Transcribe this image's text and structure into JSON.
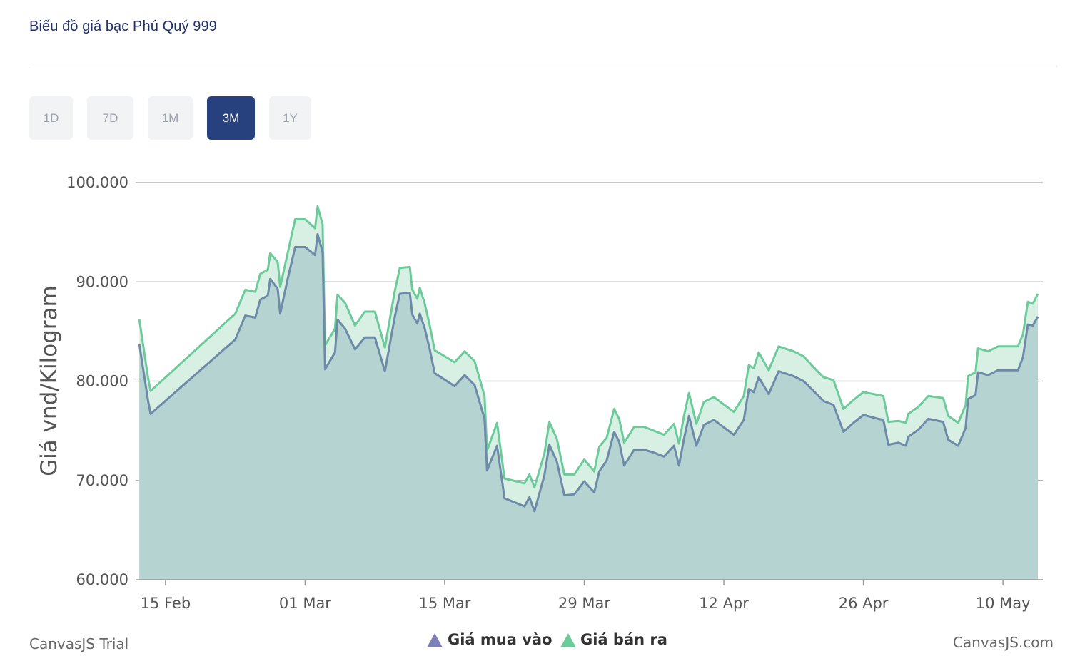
{
  "header": {
    "title": "Biểu đồ giá bạc Phú Quý 999"
  },
  "range_buttons": [
    {
      "label": "1D",
      "active": false
    },
    {
      "label": "7D",
      "active": false
    },
    {
      "label": "1M",
      "active": false
    },
    {
      "label": "3M",
      "active": true
    },
    {
      "label": "1Y",
      "active": false
    }
  ],
  "colors": {
    "buy_line": "#6d8aa8",
    "sell_line": "#6ccb9a",
    "buy_fill": "#b4d3d1",
    "sell_fill": "#d8f0e4",
    "active_button": "#27407e",
    "gridline": "#a7a7a7",
    "legend_buy_marker": "#7d80b9",
    "legend_sell_marker": "#6ccb9a"
  },
  "credits": {
    "left": "CanvasJS Trial",
    "right": "CanvasJS.com"
  },
  "chart_data": {
    "type": "area",
    "title": "",
    "ylabel": "Giá vnd/Kilogram",
    "xlabel": "",
    "ylim": [
      60000,
      100000
    ],
    "y_ticks": [
      "60.000",
      "70.000",
      "80.000",
      "90.000",
      "100.000"
    ],
    "y_tick_values": [
      60000,
      70000,
      80000,
      90000,
      100000
    ],
    "x_ticks": [
      "15 Feb",
      "01 Mar",
      "15 Mar",
      "29 Mar",
      "12 Apr",
      "26 Apr",
      "10 May"
    ],
    "x_tick_dates": [
      "2025-02-15",
      "2025-03-01",
      "2025-03-15",
      "2025-03-29",
      "2025-04-12",
      "2025-04-26",
      "2025-05-10"
    ],
    "x_range": [
      "2025-02-12",
      "2025-05-13"
    ],
    "grid": true,
    "legend_position": "bottom-center",
    "series": [
      {
        "name": "Giá mua vào",
        "color": "#6d8aa8",
        "points": [
          [
            "2025-02-12T09:00",
            83700
          ],
          [
            "2025-02-13T06:00",
            78000
          ],
          [
            "2025-02-13T12:00",
            76700
          ],
          [
            "2025-02-22T00:00",
            84200
          ],
          [
            "2025-02-23T00:00",
            86600
          ],
          [
            "2025-02-24T00:00",
            86400
          ],
          [
            "2025-02-24T12:00",
            88200
          ],
          [
            "2025-02-25T06:00",
            88600
          ],
          [
            "2025-02-25T12:00",
            90300
          ],
          [
            "2025-02-26T06:00",
            89300
          ],
          [
            "2025-02-26T12:00",
            86800
          ],
          [
            "2025-02-27T06:00",
            90300
          ],
          [
            "2025-02-28T00:00",
            93500
          ],
          [
            "2025-03-01T00:00",
            93500
          ],
          [
            "2025-03-02T00:00",
            92700
          ],
          [
            "2025-03-02T06:00",
            94800
          ],
          [
            "2025-03-02T18:00",
            93000
          ],
          [
            "2025-03-03T00:00",
            81200
          ],
          [
            "2025-03-04T00:00",
            82900
          ],
          [
            "2025-03-04T06:00",
            86200
          ],
          [
            "2025-03-05T00:00",
            85300
          ],
          [
            "2025-03-06T00:00",
            83200
          ],
          [
            "2025-03-07T00:00",
            84400
          ],
          [
            "2025-03-08T00:00",
            84400
          ],
          [
            "2025-03-09T00:00",
            81000
          ],
          [
            "2025-03-10T00:00",
            86500
          ],
          [
            "2025-03-10T12:00",
            88800
          ],
          [
            "2025-03-11T12:00",
            88900
          ],
          [
            "2025-03-11T18:00",
            86700
          ],
          [
            "2025-03-12T06:00",
            85800
          ],
          [
            "2025-03-12T12:00",
            86800
          ],
          [
            "2025-03-13T00:00",
            85300
          ],
          [
            "2025-03-13T12:00",
            83200
          ],
          [
            "2025-03-14T00:00",
            80800
          ],
          [
            "2025-03-16T00:00",
            79500
          ],
          [
            "2025-03-17T00:00",
            80600
          ],
          [
            "2025-03-18T00:00",
            79600
          ],
          [
            "2025-03-19T00:00",
            76200
          ],
          [
            "2025-03-19T06:00",
            71000
          ],
          [
            "2025-03-20T06:00",
            73500
          ],
          [
            "2025-03-21T00:00",
            68200
          ],
          [
            "2025-03-23T00:00",
            67400
          ],
          [
            "2025-03-23T12:00",
            68300
          ],
          [
            "2025-03-24T00:00",
            66900
          ],
          [
            "2025-03-25T00:00",
            70500
          ],
          [
            "2025-03-25T12:00",
            73600
          ],
          [
            "2025-03-26T06:00",
            71900
          ],
          [
            "2025-03-27T00:00",
            68500
          ],
          [
            "2025-03-28T00:00",
            68600
          ],
          [
            "2025-03-29T00:00",
            69900
          ],
          [
            "2025-03-30T00:00",
            68800
          ],
          [
            "2025-03-30T12:00",
            70900
          ],
          [
            "2025-03-31T06:00",
            72000
          ],
          [
            "2025-04-01T00:00",
            74900
          ],
          [
            "2025-04-01T12:00",
            73900
          ],
          [
            "2025-04-02T00:00",
            71500
          ],
          [
            "2025-04-03T00:00",
            73100
          ],
          [
            "2025-04-04T00:00",
            73100
          ],
          [
            "2025-04-05T00:00",
            72800
          ],
          [
            "2025-04-06T00:00",
            72400
          ],
          [
            "2025-04-07T00:00",
            73500
          ],
          [
            "2025-04-07T12:00",
            71500
          ],
          [
            "2025-04-08T00:00",
            74200
          ],
          [
            "2025-04-08T12:00",
            76500
          ],
          [
            "2025-04-09T06:00",
            73500
          ],
          [
            "2025-04-10T00:00",
            75600
          ],
          [
            "2025-04-11T00:00",
            76100
          ],
          [
            "2025-04-13T00:00",
            74600
          ],
          [
            "2025-04-14T00:00",
            76100
          ],
          [
            "2025-04-14T12:00",
            79200
          ],
          [
            "2025-04-15T00:00",
            78900
          ],
          [
            "2025-04-15T12:00",
            80400
          ],
          [
            "2025-04-16T12:00",
            78700
          ],
          [
            "2025-04-17T12:00",
            81000
          ],
          [
            "2025-04-19T00:00",
            80500
          ],
          [
            "2025-04-20T00:00",
            80000
          ],
          [
            "2025-04-21T00:00",
            79000
          ],
          [
            "2025-04-22T00:00",
            78000
          ],
          [
            "2025-04-23T00:00",
            77600
          ],
          [
            "2025-04-24T00:00",
            74900
          ],
          [
            "2025-04-25T00:00",
            75800
          ],
          [
            "2025-04-26T00:00",
            76600
          ],
          [
            "2025-04-27T12:00",
            76200
          ],
          [
            "2025-04-28T00:00",
            76100
          ],
          [
            "2025-04-28T12:00",
            73600
          ],
          [
            "2025-04-29T12:00",
            73800
          ],
          [
            "2025-04-30T06:00",
            73500
          ],
          [
            "2025-04-30T12:00",
            74400
          ],
          [
            "2025-05-01T12:00",
            75100
          ],
          [
            "2025-05-02T12:00",
            76200
          ],
          [
            "2025-05-04T00:00",
            75900
          ],
          [
            "2025-05-04T12:00",
            74100
          ],
          [
            "2025-05-05T12:00",
            73500
          ],
          [
            "2025-05-06T06:00",
            75300
          ],
          [
            "2025-05-06T12:00",
            78200
          ],
          [
            "2025-05-07T06:00",
            78600
          ],
          [
            "2025-05-07T12:00",
            80900
          ],
          [
            "2025-05-08T12:00",
            80600
          ],
          [
            "2025-05-09T12:00",
            81100
          ],
          [
            "2025-05-10T12:00",
            81100
          ],
          [
            "2025-05-11T12:00",
            81100
          ],
          [
            "2025-05-12T00:00",
            82400
          ],
          [
            "2025-05-12T12:00",
            85700
          ],
          [
            "2025-05-13T00:00",
            85600
          ],
          [
            "2025-05-13T12:00",
            86500
          ]
        ]
      },
      {
        "name": "Giá bán ra",
        "color": "#6ccb9a",
        "points": [
          [
            "2025-02-12T09:00",
            86200
          ],
          [
            "2025-02-13T06:00",
            80300
          ],
          [
            "2025-02-13T12:00",
            79000
          ],
          [
            "2025-02-22T00:00",
            86800
          ],
          [
            "2025-02-23T00:00",
            89200
          ],
          [
            "2025-02-24T00:00",
            89000
          ],
          [
            "2025-02-24T12:00",
            90800
          ],
          [
            "2025-02-25T06:00",
            91200
          ],
          [
            "2025-02-25T12:00",
            92900
          ],
          [
            "2025-02-26T06:00",
            92000
          ],
          [
            "2025-02-26T12:00",
            89500
          ],
          [
            "2025-02-27T06:00",
            92900
          ],
          [
            "2025-02-28T00:00",
            96300
          ],
          [
            "2025-03-01T00:00",
            96300
          ],
          [
            "2025-03-02T00:00",
            95400
          ],
          [
            "2025-03-02T06:00",
            97600
          ],
          [
            "2025-03-02T18:00",
            95800
          ],
          [
            "2025-03-03T00:00",
            83600
          ],
          [
            "2025-03-04T00:00",
            85300
          ],
          [
            "2025-03-04T06:00",
            88700
          ],
          [
            "2025-03-05T00:00",
            87900
          ],
          [
            "2025-03-06T00:00",
            85600
          ],
          [
            "2025-03-07T00:00",
            87000
          ],
          [
            "2025-03-08T00:00",
            87000
          ],
          [
            "2025-03-09T00:00",
            83400
          ],
          [
            "2025-03-10T00:00",
            89100
          ],
          [
            "2025-03-10T12:00",
            91400
          ],
          [
            "2025-03-11T12:00",
            91500
          ],
          [
            "2025-03-11T18:00",
            89200
          ],
          [
            "2025-03-12T06:00",
            88300
          ],
          [
            "2025-03-12T12:00",
            89400
          ],
          [
            "2025-03-13T00:00",
            87800
          ],
          [
            "2025-03-13T12:00",
            85600
          ],
          [
            "2025-03-14T00:00",
            83100
          ],
          [
            "2025-03-16T00:00",
            81900
          ],
          [
            "2025-03-17T00:00",
            83000
          ],
          [
            "2025-03-18T00:00",
            82000
          ],
          [
            "2025-03-19T00:00",
            78500
          ],
          [
            "2025-03-19T06:00",
            73000
          ],
          [
            "2025-03-20T06:00",
            75800
          ],
          [
            "2025-03-21T00:00",
            70200
          ],
          [
            "2025-03-23T00:00",
            69700
          ],
          [
            "2025-03-23T12:00",
            70600
          ],
          [
            "2025-03-24T00:00",
            69300
          ],
          [
            "2025-03-25T00:00",
            72700
          ],
          [
            "2025-03-25T12:00",
            75900
          ],
          [
            "2025-03-26T06:00",
            74200
          ],
          [
            "2025-03-27T00:00",
            70600
          ],
          [
            "2025-03-28T00:00",
            70600
          ],
          [
            "2025-03-29T00:00",
            72100
          ],
          [
            "2025-03-30T00:00",
            70900
          ],
          [
            "2025-03-30T12:00",
            73400
          ],
          [
            "2025-03-31T06:00",
            74300
          ],
          [
            "2025-04-01T00:00",
            77200
          ],
          [
            "2025-04-01T12:00",
            76200
          ],
          [
            "2025-04-02T00:00",
            73800
          ],
          [
            "2025-04-03T00:00",
            75400
          ],
          [
            "2025-04-04T00:00",
            75400
          ],
          [
            "2025-04-05T00:00",
            75000
          ],
          [
            "2025-04-06T00:00",
            74600
          ],
          [
            "2025-04-07T00:00",
            75700
          ],
          [
            "2025-04-07T12:00",
            73700
          ],
          [
            "2025-04-08T00:00",
            76500
          ],
          [
            "2025-04-08T12:00",
            78800
          ],
          [
            "2025-04-09T06:00",
            75700
          ],
          [
            "2025-04-10T00:00",
            77900
          ],
          [
            "2025-04-11T00:00",
            78400
          ],
          [
            "2025-04-13T00:00",
            76900
          ],
          [
            "2025-04-14T00:00",
            78500
          ],
          [
            "2025-04-14T12:00",
            81600
          ],
          [
            "2025-04-15T00:00",
            81300
          ],
          [
            "2025-04-15T12:00",
            82900
          ],
          [
            "2025-04-16T12:00",
            81100
          ],
          [
            "2025-04-17T12:00",
            83500
          ],
          [
            "2025-04-19T00:00",
            83000
          ],
          [
            "2025-04-20T00:00",
            82500
          ],
          [
            "2025-04-21T00:00",
            81400
          ],
          [
            "2025-04-22T00:00",
            80400
          ],
          [
            "2025-04-23T00:00",
            80100
          ],
          [
            "2025-04-24T00:00",
            77200
          ],
          [
            "2025-04-25T00:00",
            78100
          ],
          [
            "2025-04-26T00:00",
            78900
          ],
          [
            "2025-04-27T12:00",
            78600
          ],
          [
            "2025-04-28T00:00",
            78500
          ],
          [
            "2025-04-28T12:00",
            75900
          ],
          [
            "2025-04-29T12:00",
            76000
          ],
          [
            "2025-04-30T06:00",
            75800
          ],
          [
            "2025-04-30T12:00",
            76700
          ],
          [
            "2025-05-01T12:00",
            77400
          ],
          [
            "2025-05-02T12:00",
            78500
          ],
          [
            "2025-05-04T00:00",
            78300
          ],
          [
            "2025-05-04T12:00",
            76500
          ],
          [
            "2025-05-05T12:00",
            75800
          ],
          [
            "2025-05-06T06:00",
            77600
          ],
          [
            "2025-05-06T12:00",
            80500
          ],
          [
            "2025-05-07T06:00",
            80900
          ],
          [
            "2025-05-07T12:00",
            83300
          ],
          [
            "2025-05-08T12:00",
            83000
          ],
          [
            "2025-05-09T12:00",
            83500
          ],
          [
            "2025-05-10T12:00",
            83500
          ],
          [
            "2025-05-11T12:00",
            83500
          ],
          [
            "2025-05-12T00:00",
            84700
          ],
          [
            "2025-05-12T12:00",
            88000
          ],
          [
            "2025-05-13T00:00",
            87800
          ],
          [
            "2025-05-13T12:00",
            88800
          ]
        ]
      }
    ]
  }
}
